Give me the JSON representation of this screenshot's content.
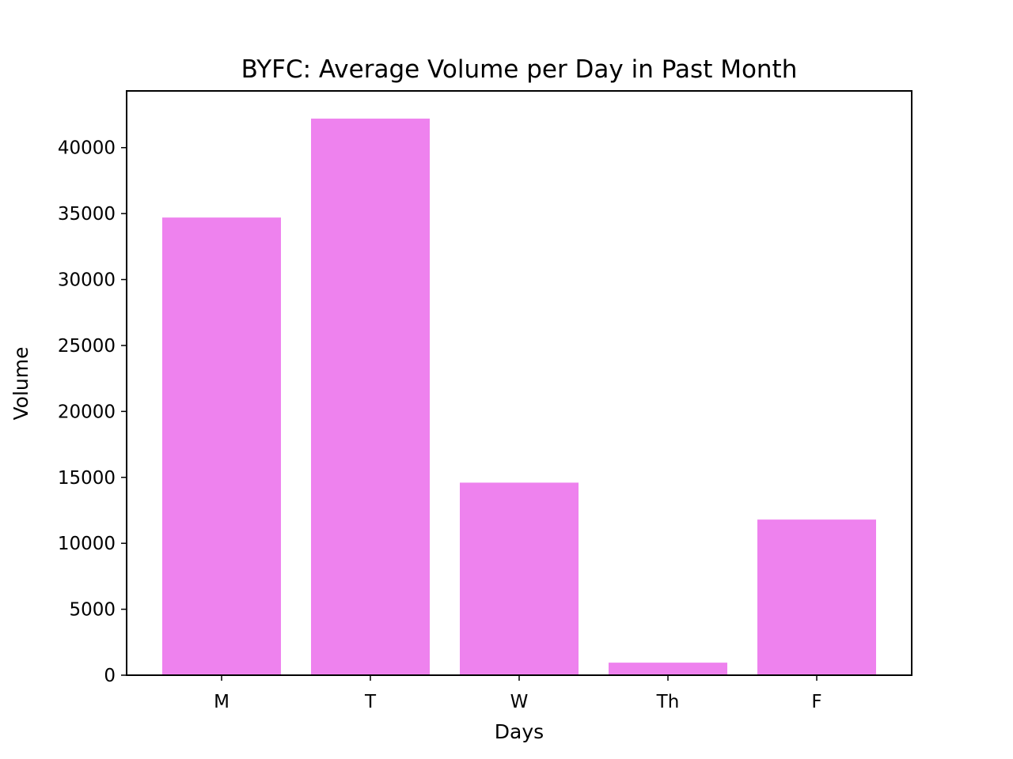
{
  "chart_data": {
    "type": "bar",
    "title": "BYFC: Average Volume per Day in Past Month",
    "xlabel": "Days",
    "ylabel": "Volume",
    "categories": [
      "M",
      "T",
      "W",
      "Th",
      "F"
    ],
    "values": [
      34700,
      42200,
      14600,
      950,
      11800
    ],
    "ylim": [
      0,
      44300
    ],
    "yticks": [
      0,
      5000,
      10000,
      15000,
      20000,
      25000,
      30000,
      35000,
      40000
    ],
    "ytick_labels": [
      "0",
      "5000",
      "10000",
      "15000",
      "20000",
      "25000",
      "30000",
      "35000",
      "40000"
    ],
    "bar_color": "#ee82ee",
    "grid": false,
    "legend": "none"
  }
}
